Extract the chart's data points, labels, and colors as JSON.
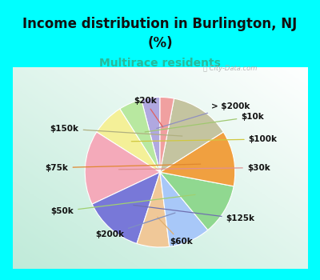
{
  "title_line1": "Income distribution in Burlington, NJ",
  "title_line2": "(%)",
  "subtitle": "Multirace residents",
  "title_color": "#111111",
  "subtitle_color": "#2ab89a",
  "top_bg": "#00ffff",
  "border_color": "#00ffff",
  "watermark_text": "City-Data.com",
  "watermark_color": "#aaaaaa",
  "labels": [
    "> $200k",
    "$10k",
    "$100k",
    "$30k",
    "$125k",
    "$60k",
    "$200k",
    "$50k",
    "$75k",
    "$150k",
    "$20k"
  ],
  "values": [
    4,
    5,
    7,
    16,
    13,
    7,
    9,
    11,
    12,
    13,
    3
  ],
  "colors": [
    "#b0a8e0",
    "#b8e8a0",
    "#f4f098",
    "#f4aaba",
    "#7878d8",
    "#f0c898",
    "#a8c8f8",
    "#90d890",
    "#f0a040",
    "#c4c4a0",
    "#f0a0a0"
  ],
  "startangle": 90,
  "figsize": [
    4.0,
    3.5
  ],
  "dpi": 100
}
